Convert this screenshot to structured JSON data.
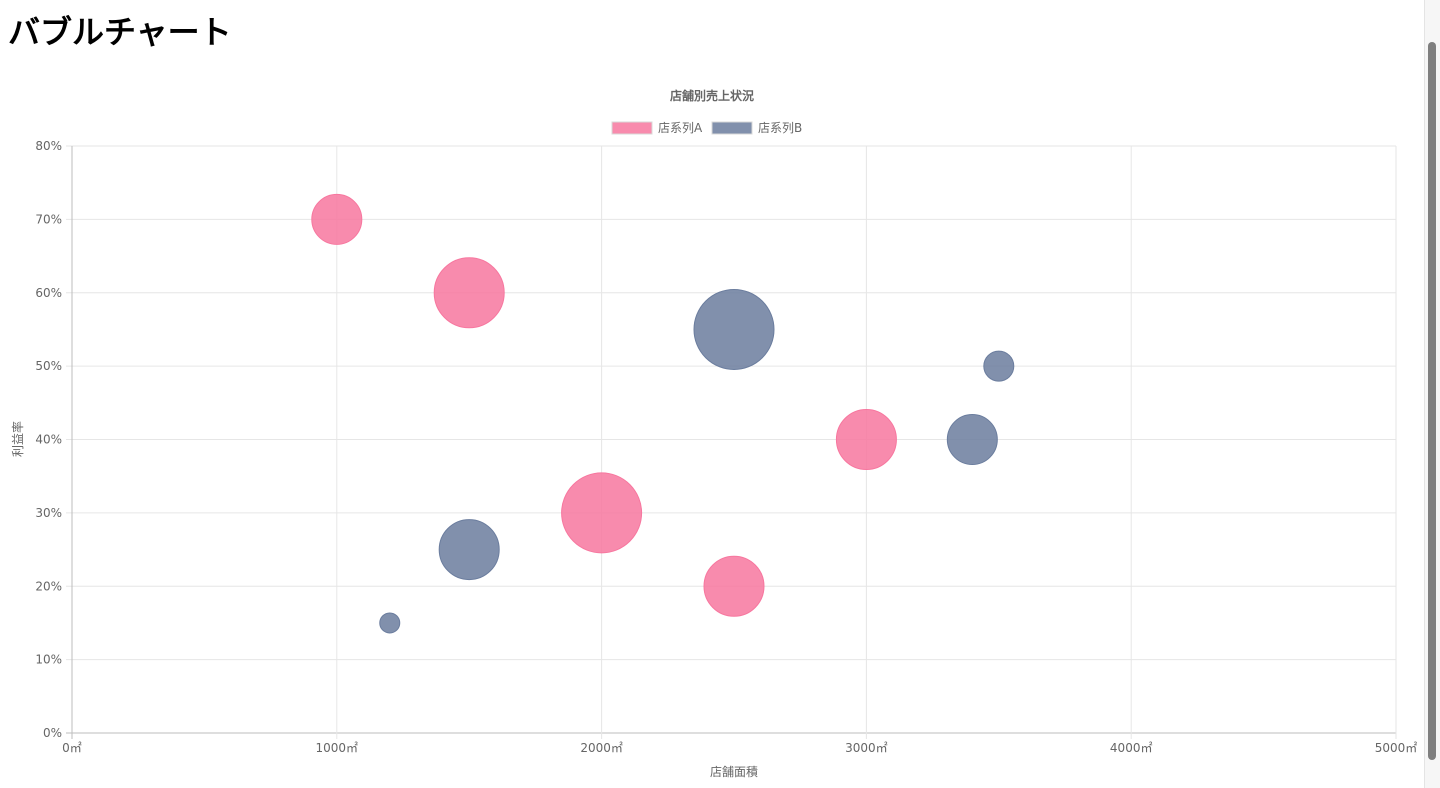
{
  "page": {
    "heading": "バブルチャート"
  },
  "chart_data": {
    "type": "bubble",
    "title": "店舗別売上状況",
    "xlabel": "店舗面積",
    "ylabel": "利益率",
    "xlim": [
      0,
      5000
    ],
    "ylim": [
      0,
      80
    ],
    "x_ticks": [
      0,
      1000,
      2000,
      3000,
      4000,
      5000
    ],
    "x_tick_labels": [
      "0㎡",
      "1000㎡",
      "2000㎡",
      "3000㎡",
      "4000㎡",
      "5000㎡"
    ],
    "y_ticks": [
      0,
      10,
      20,
      30,
      40,
      50,
      60,
      70,
      80
    ],
    "y_tick_labels": [
      "0%",
      "10%",
      "20%",
      "30%",
      "40%",
      "50%",
      "60%",
      "70%",
      "80%"
    ],
    "grid": true,
    "legend_position": "top",
    "series": [
      {
        "name": "店系列A",
        "color": "#f7779f",
        "points": [
          {
            "x": 1000,
            "y": 70,
            "r": 25
          },
          {
            "x": 1500,
            "y": 60,
            "r": 35
          },
          {
            "x": 2000,
            "y": 30,
            "r": 40
          },
          {
            "x": 2500,
            "y": 20,
            "r": 30
          },
          {
            "x": 3000,
            "y": 40,
            "r": 30
          }
        ]
      },
      {
        "name": "店系列B",
        "color": "#6b7d9e",
        "points": [
          {
            "x": 1200,
            "y": 15,
            "r": 10
          },
          {
            "x": 1500,
            "y": 25,
            "r": 30
          },
          {
            "x": 2500,
            "y": 55,
            "r": 40
          },
          {
            "x": 3400,
            "y": 40,
            "r": 25
          },
          {
            "x": 3500,
            "y": 50,
            "r": 15
          }
        ]
      }
    ]
  }
}
